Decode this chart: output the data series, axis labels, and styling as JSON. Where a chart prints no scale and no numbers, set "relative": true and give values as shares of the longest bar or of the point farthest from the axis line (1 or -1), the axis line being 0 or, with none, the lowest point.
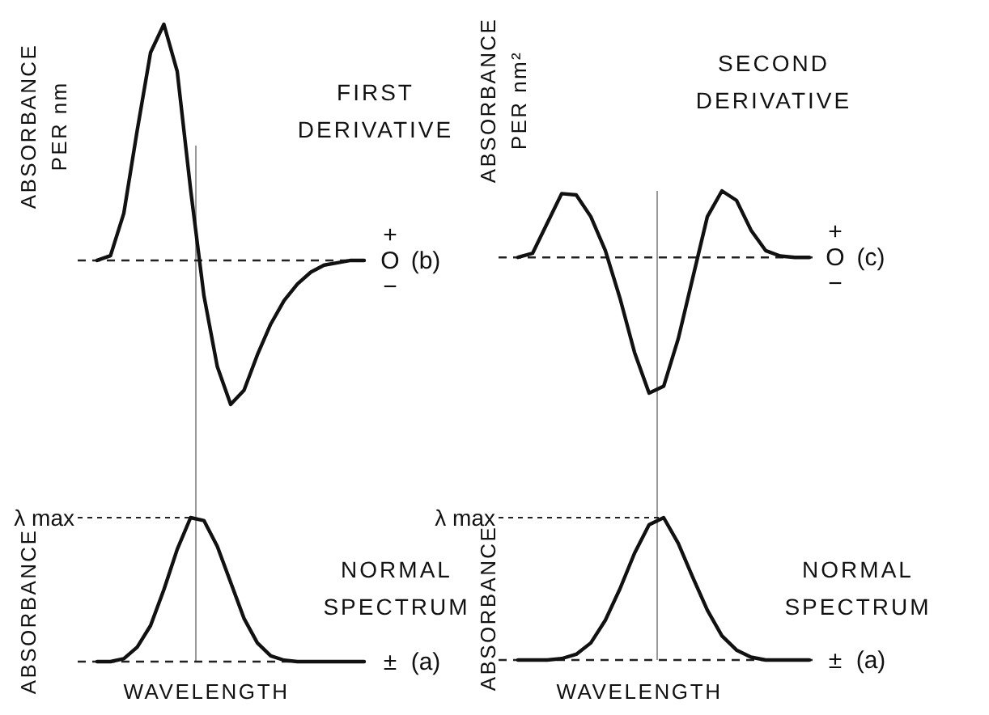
{
  "chart_data": [
    {
      "type": "line",
      "title": "FIRST DERIVATIVE",
      "ylabel": "ABSORBANCE PER nm",
      "relative": true,
      "categories": [
        null,
        null,
        null,
        null,
        null,
        null,
        null,
        null,
        null,
        null,
        null,
        null,
        null,
        null,
        null,
        null,
        null,
        null,
        null,
        null,
        null
      ],
      "series": [
        {
          "color": "#111111",
          "values": [
            0,
            0.02,
            0.2,
            0.55,
            0.88,
            1,
            0.8,
            0.3,
            -0.15,
            -0.45,
            -0.61,
            -0.55,
            -0.4,
            -0.27,
            -0.17,
            -0.1,
            -0.05,
            -0.02,
            -0.01,
            0,
            0
          ]
        }
      ],
      "ref_lines": [
        {
          "axis": "y",
          "value": 0,
          "color": "#222222",
          "line_style": "dashed"
        }
      ],
      "annotations": [
        "+",
        "O",
        "−",
        "(b)"
      ]
    },
    {
      "type": "line",
      "title": "SECOND DERIVATIVE",
      "ylabel": "ABSORBANCE PER nm²",
      "relative": true,
      "categories": [
        null,
        null,
        null,
        null,
        null,
        null,
        null,
        null,
        null,
        null,
        null,
        null,
        null,
        null,
        null,
        null,
        null,
        null,
        null,
        null,
        null
      ],
      "series": [
        {
          "color": "#111111",
          "values": [
            0,
            0.03,
            0.25,
            0.47,
            0.46,
            0.3,
            0.05,
            -0.3,
            -0.7,
            -1,
            -0.95,
            -0.6,
            -0.15,
            0.3,
            0.49,
            0.42,
            0.2,
            0.05,
            0.01,
            0,
            0
          ]
        }
      ],
      "ref_lines": [
        {
          "axis": "y",
          "value": 0,
          "color": "#222222",
          "line_style": "dashed"
        }
      ],
      "annotations": [
        "+",
        "O",
        "−",
        "(c)"
      ]
    },
    {
      "type": "line",
      "title": "NORMAL SPECTRUM",
      "ylabel": "ABSORBANCE",
      "xlabel": "WAVELENGTH",
      "relative": true,
      "categories": [
        null,
        null,
        null,
        null,
        null,
        null,
        null,
        null,
        null,
        null,
        null,
        null,
        null,
        null,
        null,
        null,
        null,
        null,
        null,
        null,
        null
      ],
      "series": [
        {
          "color": "#111111",
          "values": [
            0,
            0,
            0.02,
            0.1,
            0.25,
            0.5,
            0.78,
            1,
            0.98,
            0.8,
            0.55,
            0.3,
            0.13,
            0.04,
            0.01,
            0,
            0,
            0,
            0,
            0,
            0
          ]
        }
      ],
      "annotations": [
        "λ max",
        "±",
        "(a)"
      ]
    },
    {
      "type": "line",
      "title": "NORMAL SPECTRUM",
      "ylabel": "ABSORBANCE",
      "xlabel": "WAVELENGTH",
      "relative": true,
      "categories": [
        null,
        null,
        null,
        null,
        null,
        null,
        null,
        null,
        null,
        null,
        null,
        null,
        null,
        null,
        null,
        null,
        null,
        null,
        null,
        null,
        null
      ],
      "series": [
        {
          "color": "#111111",
          "values": [
            0,
            0,
            0,
            0.01,
            0.04,
            0.12,
            0.28,
            0.5,
            0.75,
            0.95,
            1,
            0.82,
            0.58,
            0.35,
            0.17,
            0.07,
            0.02,
            0,
            0,
            0,
            0
          ]
        }
      ],
      "annotations": [
        "λ max",
        "±",
        "(a)"
      ]
    }
  ]
}
